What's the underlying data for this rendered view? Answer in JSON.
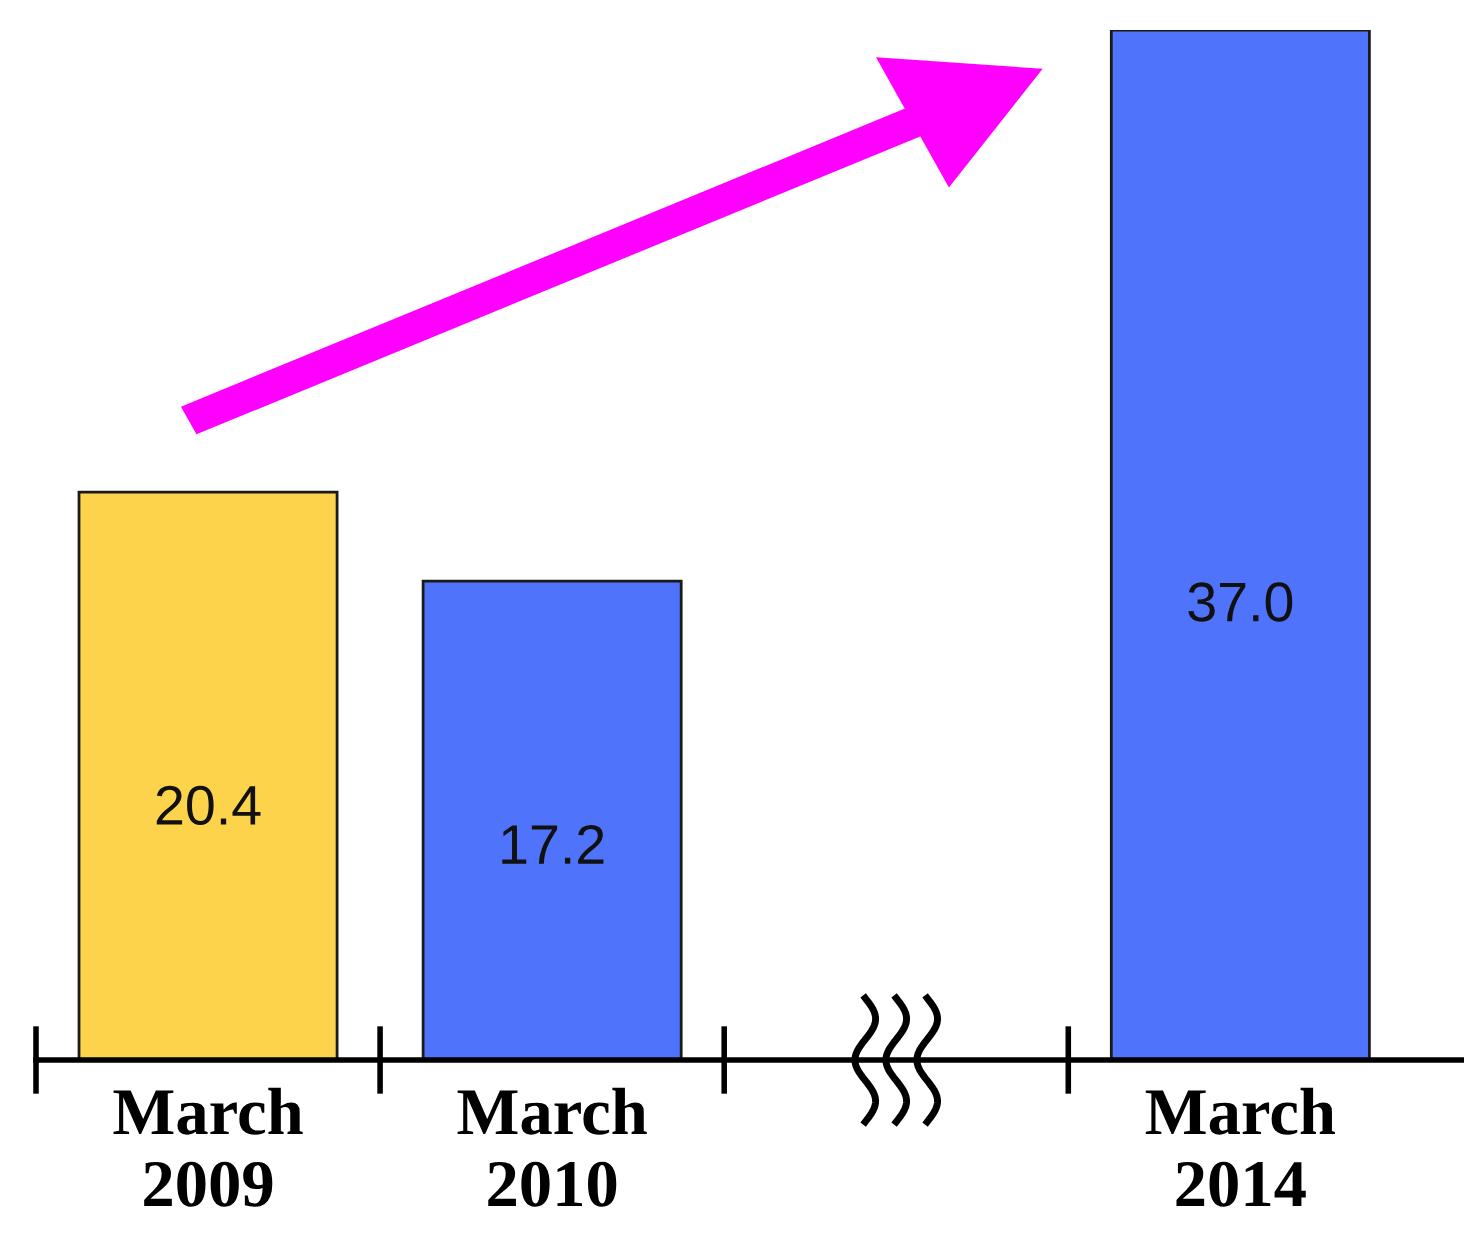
{
  "chart_data": {
    "type": "bar",
    "categories": [
      "March\n2009",
      "March\n2010",
      null,
      "March\n2014"
    ],
    "values": [
      20.4,
      17.2,
      null,
      37.0
    ],
    "colors": [
      "#fcd34a",
      "#4f74fb",
      null,
      "#4f74fb"
    ],
    "value_labels": [
      "20.4",
      "17.2",
      null,
      "37.0"
    ],
    "grid": false,
    "legend": false
  }
}
